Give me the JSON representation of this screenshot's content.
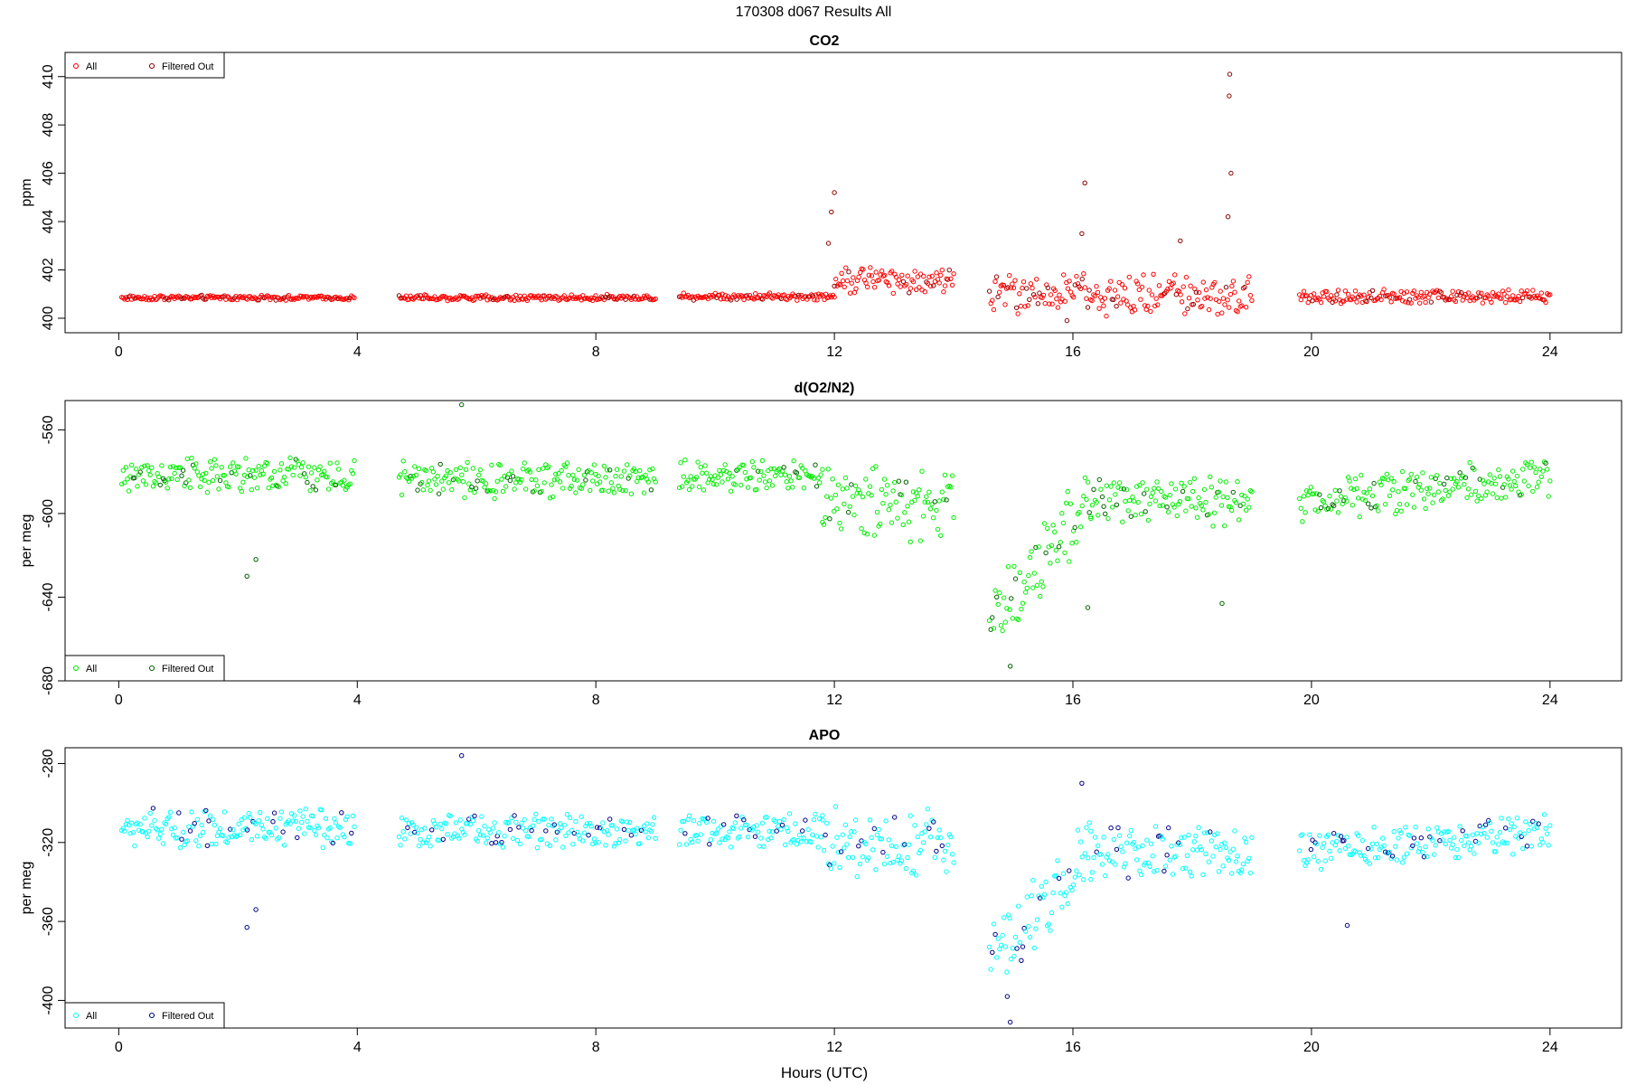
{
  "figure": {
    "title": "170308   d067   Results All",
    "xlabel": "Hours (UTC)"
  },
  "chart_data": [
    {
      "type": "scatter",
      "title": "CO2",
      "ylabel": "ppm",
      "xlim": [
        -0.9,
        25.2
      ],
      "ylim": [
        399.4,
        411.0
      ],
      "xticks": [
        0,
        4,
        8,
        12,
        16,
        20,
        24
      ],
      "yticks": [
        400,
        402,
        404,
        406,
        408,
        410
      ],
      "legend": {
        "position": "top-left",
        "entries": [
          "All",
          "Filtered Out"
        ]
      },
      "colors": {
        "all": "#ff0000",
        "filtered": "#8b0000"
      },
      "segments": [
        {
          "x_start": 0.05,
          "x_end": 3.95,
          "base": 400.85,
          "noise": 0.08
        },
        {
          "x_start": 4.7,
          "x_end": 9.0,
          "base": 400.85,
          "noise": 0.1
        },
        {
          "x_start": 9.4,
          "x_end": 12.0,
          "base": 400.9,
          "noise": 0.12
        },
        {
          "x_start": 12.0,
          "x_end": 14.0,
          "base": 401.6,
          "noise": 0.45
        },
        {
          "x_start": 14.6,
          "x_end": 19.0,
          "base": 401.0,
          "noise": 0.7
        },
        {
          "x_start": 19.8,
          "x_end": 24.0,
          "base": 400.9,
          "noise": 0.25
        }
      ],
      "highlights": [
        {
          "x": 11.9,
          "y": 403.1
        },
        {
          "x": 11.95,
          "y": 404.4
        },
        {
          "x": 12.0,
          "y": 405.2
        },
        {
          "x": 16.2,
          "y": 405.6
        },
        {
          "x": 16.15,
          "y": 403.5
        },
        {
          "x": 17.8,
          "y": 403.2
        },
        {
          "x": 18.6,
          "y": 404.2
        },
        {
          "x": 18.65,
          "y": 406.0
        },
        {
          "x": 18.62,
          "y": 409.2
        },
        {
          "x": 18.63,
          "y": 410.1
        },
        {
          "x": 15.9,
          "y": 399.9
        }
      ]
    },
    {
      "type": "scatter",
      "title": "d(O2/N2)",
      "ylabel": "per meg",
      "xlim": [
        -0.9,
        25.2
      ],
      "ylim": [
        -680.0,
        -546.0
      ],
      "xticks": [
        0,
        4,
        8,
        12,
        16,
        20,
        24
      ],
      "yticks": [
        -560,
        -600,
        -640,
        -680
      ],
      "legend": {
        "position": "bottom-left",
        "entries": [
          "All",
          "Filtered Out"
        ]
      },
      "colors": {
        "all": "#00ee00",
        "filtered": "#006400"
      },
      "segments": [
        {
          "x_start": 0.05,
          "x_end": 3.95,
          "base": -582.0,
          "noise": 7.0
        },
        {
          "x_start": 4.7,
          "x_end": 9.0,
          "base": -584.0,
          "noise": 7.0
        },
        {
          "x_start": 9.4,
          "x_end": 11.8,
          "base": -582.0,
          "noise": 6.0
        },
        {
          "x_start": 11.8,
          "x_end": 14.0,
          "base": -595.0,
          "noise": 14.0
        },
        {
          "x_start": 14.6,
          "x_end": 16.3,
          "trend_from": -650.0,
          "trend_to": -595.0,
          "noise": 14.0
        },
        {
          "x_start": 16.3,
          "x_end": 19.0,
          "base": -593.0,
          "noise": 10.0
        },
        {
          "x_start": 19.8,
          "x_end": 24.0,
          "trend_from": -595.0,
          "trend_to": -582.0,
          "noise": 8.0
        }
      ],
      "highlights": [
        {
          "x": 5.75,
          "y": -548.0
        },
        {
          "x": 2.15,
          "y": -630.0
        },
        {
          "x": 2.3,
          "y": -622.0
        },
        {
          "x": 14.95,
          "y": -673.0
        },
        {
          "x": 16.25,
          "y": -645.0
        },
        {
          "x": 18.5,
          "y": -643.0
        }
      ]
    },
    {
      "type": "scatter",
      "title": "APO",
      "ylabel": "per meg",
      "xlim": [
        -0.9,
        25.2
      ],
      "ylim": [
        -414.0,
        -272.0
      ],
      "xticks": [
        0,
        4,
        8,
        12,
        16,
        20,
        24
      ],
      "yticks": [
        -280,
        -320,
        -360,
        -400
      ],
      "legend": {
        "position": "bottom-left",
        "entries": [
          "All",
          "Filtered Out"
        ]
      },
      "colors": {
        "all": "#00ffff",
        "filtered": "#00008b"
      },
      "segments": [
        {
          "x_start": 0.05,
          "x_end": 3.95,
          "base": -313.0,
          "noise": 8.0
        },
        {
          "x_start": 4.7,
          "x_end": 9.0,
          "base": -314.0,
          "noise": 7.0
        },
        {
          "x_start": 9.4,
          "x_end": 11.8,
          "base": -314.0,
          "noise": 7.0
        },
        {
          "x_start": 11.8,
          "x_end": 14.0,
          "base": -320.0,
          "noise": 14.0
        },
        {
          "x_start": 14.6,
          "x_end": 16.3,
          "trend_from": -380.0,
          "trend_to": -325.0,
          "noise": 15.0
        },
        {
          "x_start": 16.3,
          "x_end": 19.0,
          "base": -325.0,
          "noise": 10.0
        },
        {
          "x_start": 19.8,
          "x_end": 24.0,
          "trend_from": -325.0,
          "trend_to": -314.0,
          "noise": 8.0
        }
      ],
      "highlights": [
        {
          "x": 5.75,
          "y": -276.0
        },
        {
          "x": 2.15,
          "y": -363.0
        },
        {
          "x": 2.3,
          "y": -354.0
        },
        {
          "x": 14.95,
          "y": -411.0
        },
        {
          "x": 14.9,
          "y": -398.0
        },
        {
          "x": 16.15,
          "y": -290.0
        },
        {
          "x": 20.6,
          "y": -362.0
        }
      ]
    }
  ]
}
